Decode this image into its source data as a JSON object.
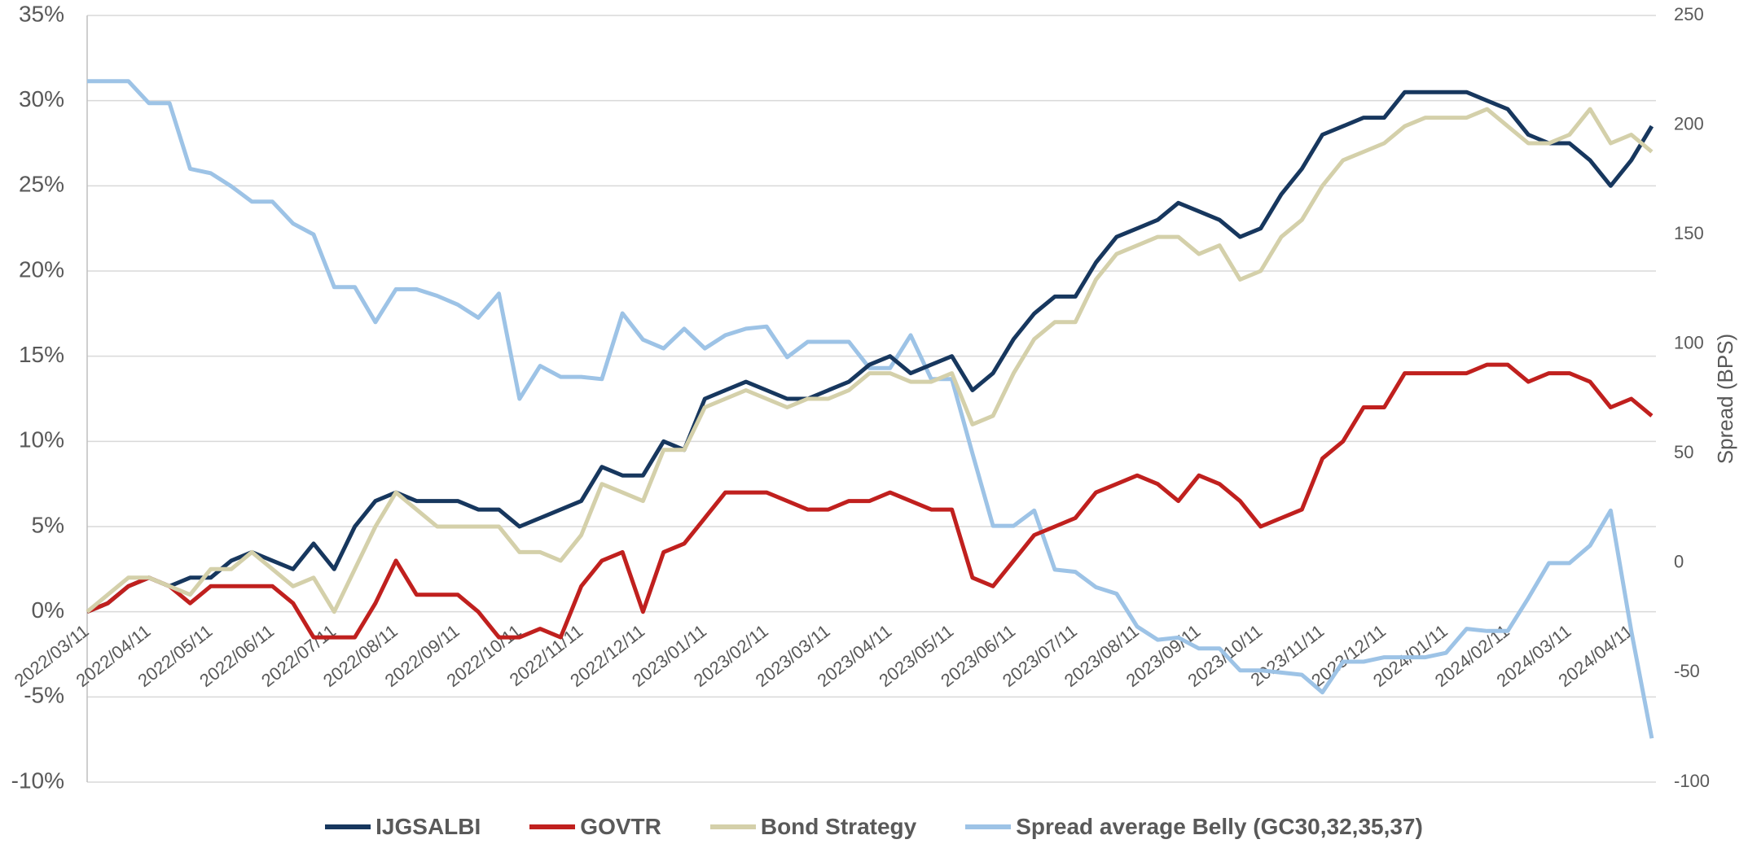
{
  "chart_data": {
    "type": "line",
    "y2_label": "Spread (BPS)",
    "categories": [
      "2022/03/11",
      null,
      null,
      "2022/04/11",
      null,
      null,
      "2022/05/11",
      null,
      null,
      "2022/06/11",
      null,
      null,
      "2022/07/11",
      null,
      null,
      "2022/08/11",
      null,
      null,
      "2022/09/11",
      null,
      null,
      "2022/10/11",
      null,
      null,
      "2022/11/11",
      null,
      null,
      "2022/12/11",
      null,
      null,
      "2023/01/11",
      null,
      null,
      "2023/02/11",
      null,
      null,
      "2023/03/11",
      null,
      null,
      "2023/04/11",
      null,
      null,
      "2023/05/11",
      null,
      null,
      "2023/06/11",
      null,
      null,
      "2023/07/11",
      null,
      null,
      "2023/08/11",
      null,
      null,
      "2023/09/11",
      null,
      null,
      "2023/10/11",
      null,
      null,
      "2023/11/11",
      null,
      null,
      "2023/12/11",
      null,
      null,
      "2024/01/11",
      null,
      null,
      "2024/02/11",
      null,
      null,
      "2024/03/11",
      null,
      null,
      "2024/04/11",
      null
    ],
    "series": [
      {
        "name": "IJGSALBI",
        "color": "#17375e",
        "values": [
          0,
          0.5,
          1.5,
          2,
          1.5,
          2,
          2,
          3,
          3.5,
          3,
          2.5,
          4,
          2.5,
          5,
          6.5,
          7,
          6.5,
          6.5,
          6.5,
          6,
          6,
          5,
          5.5,
          6,
          6.5,
          8.5,
          8,
          8,
          10,
          9.5,
          12.5,
          13,
          13.5,
          13,
          12.5,
          12.5,
          13,
          13.5,
          14.5,
          15,
          14,
          14.5,
          15,
          13,
          14,
          16,
          17.5,
          18.5,
          18.5,
          20.5,
          22,
          22.5,
          23,
          24,
          23.5,
          23,
          22,
          22.5,
          24.5,
          26,
          28,
          28.5,
          29,
          29,
          30.5,
          30.5,
          30.5,
          30.5,
          30,
          29.5,
          28,
          27.5,
          27.5,
          26.5,
          25,
          26.5,
          28.5
        ]
      },
      {
        "name": "GOVTR",
        "color": "#c0201e",
        "values": [
          0,
          0.5,
          1.5,
          2,
          1.5,
          0.5,
          1.5,
          1.5,
          1.5,
          1.5,
          0.5,
          -1.5,
          -1.5,
          -1.5,
          0.5,
          3,
          1,
          1,
          1,
          0,
          -1.5,
          -1.5,
          -1,
          -1.5,
          1.5,
          3,
          3.5,
          0,
          3.5,
          4,
          5.5,
          7,
          7,
          7,
          6.5,
          6,
          6,
          6.5,
          6.5,
          7,
          6.5,
          6,
          6,
          2,
          1.5,
          3,
          4.5,
          5,
          5.5,
          7,
          7.5,
          8,
          7.5,
          6.5,
          8,
          7.5,
          6.5,
          5,
          5.5,
          6,
          9,
          10,
          12,
          12,
          14,
          14,
          14,
          14,
          14.5,
          14.5,
          13.5,
          14,
          14,
          13.5,
          12,
          12.5,
          11.5
        ]
      },
      {
        "name": "Bond Strategy",
        "color": "#d4d0aa",
        "values": [
          0,
          1,
          2,
          2,
          1.5,
          1,
          2.5,
          2.5,
          3.5,
          2.5,
          1.5,
          2,
          0,
          2.5,
          5,
          7,
          6,
          5,
          5,
          5,
          5,
          3.5,
          3.5,
          3,
          4.5,
          7.5,
          7,
          6.5,
          9.5,
          9.5,
          12,
          12.5,
          13,
          12.5,
          12,
          12.5,
          12.5,
          13,
          14,
          14,
          13.5,
          13.5,
          14,
          11,
          11.5,
          14,
          16,
          17,
          17,
          19.5,
          21,
          21.5,
          22,
          22,
          21,
          21.5,
          19.5,
          20,
          22,
          23,
          25,
          26.5,
          27,
          27.5,
          28.5,
          29,
          29,
          29,
          29.5,
          28.5,
          27.5,
          27.5,
          28,
          29.5,
          27.5,
          28,
          27
        ]
      },
      {
        "name": "Spread average Belly (GC30,32,35,37)",
        "color": "#9dc3e6",
        "axis": "y2",
        "values": [
          220,
          220,
          220,
          210,
          210,
          180,
          178,
          172,
          165,
          165,
          155,
          150,
          126,
          126,
          110,
          125,
          125,
          122,
          118,
          112,
          123,
          75,
          90,
          85,
          85,
          84,
          114,
          102,
          98,
          107,
          98,
          104,
          107,
          108,
          94,
          101,
          101,
          101,
          89,
          89,
          104,
          84,
          84,
          50,
          17,
          17,
          24,
          -3,
          -4,
          -11,
          -14,
          -29,
          -35,
          -34,
          -39,
          -39,
          -49,
          -49,
          -50,
          -51,
          -59,
          -45,
          -45,
          -43,
          -43,
          -43,
          -41,
          -30,
          -31,
          -31,
          -16,
          0,
          0,
          8,
          24,
          -31,
          -80
        ]
      }
    ],
    "ylim": [
      -10,
      35
    ],
    "yticks": [
      {
        "value": -10,
        "label": "-10%"
      },
      {
        "value": -5,
        "label": "-5%"
      },
      {
        "value": 0,
        "label": "0%"
      },
      {
        "value": 5,
        "label": "5%"
      },
      {
        "value": 10,
        "label": "10%"
      },
      {
        "value": 15,
        "label": "15%"
      },
      {
        "value": 20,
        "label": "20%"
      },
      {
        "value": 25,
        "label": "25%"
      },
      {
        "value": 30,
        "label": "30%"
      },
      {
        "value": 35,
        "label": "35%"
      }
    ],
    "y2lim": [
      -100,
      250
    ],
    "y2ticks": [
      -100,
      -50,
      0,
      50,
      100,
      150,
      200,
      250
    ],
    "grid": true,
    "legend": "bottom"
  }
}
